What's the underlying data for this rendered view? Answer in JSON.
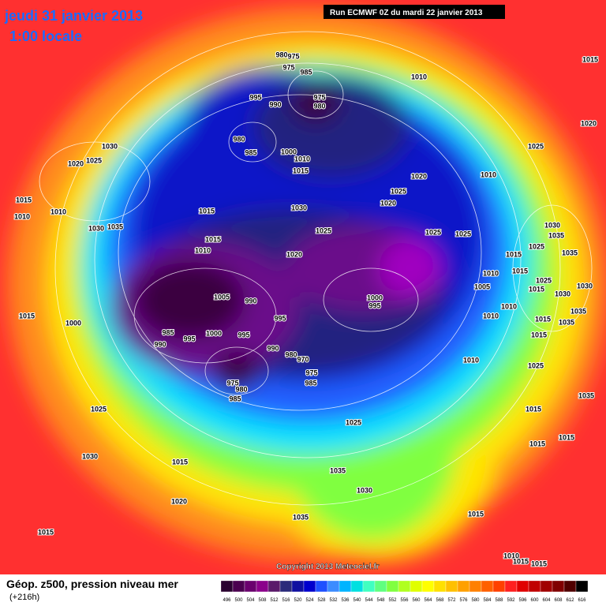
{
  "header": {
    "date": "jeudi 31 janvier 2013",
    "time": "1:00 locale",
    "run": "Run ECMWF 0Z du mardi 22 janvier 2013"
  },
  "copyright": "Copyright 2013 Meteociel.fr",
  "footer": {
    "title": "Géop. z500, pression niveau mer",
    "lead": "(+216h)"
  },
  "legend": {
    "values": [
      496,
      500,
      504,
      508,
      512,
      516,
      520,
      524,
      528,
      532,
      536,
      540,
      544,
      548,
      552,
      556,
      560,
      564,
      568,
      572,
      576,
      580,
      584,
      588,
      592,
      596,
      600,
      604,
      608,
      612,
      616
    ],
    "colors": [
      "#2a0030",
      "#4b0050",
      "#6a006e",
      "#8b008b",
      "#5a1a6a",
      "#2a2a7a",
      "#1010a0",
      "#0000cd",
      "#1e50ff",
      "#3c8cff",
      "#00b4ff",
      "#00e0e0",
      "#40ffc0",
      "#60ff80",
      "#80ff40",
      "#b0ff20",
      "#e0ff00",
      "#ffff00",
      "#ffe000",
      "#ffc000",
      "#ffa000",
      "#ff8000",
      "#ff6000",
      "#ff4000",
      "#ff2020",
      "#e00000",
      "#c00000",
      "#a00000",
      "#800000",
      "#500000",
      "#000000"
    ]
  },
  "isobar_labels": [
    980,
    975,
    975,
    985,
    975,
    980,
    995,
    990,
    980,
    985,
    1000,
    1010,
    1015,
    1010,
    1015,
    1020,
    1025,
    1010,
    1020,
    1025,
    1020,
    1030,
    1025,
    1020,
    1015,
    1010,
    1010,
    1035,
    1030,
    1015,
    1030,
    1025,
    1025,
    1025,
    1015,
    1010,
    1020,
    1005,
    990,
    995,
    1000,
    995,
    985,
    995,
    990,
    1000,
    995,
    990,
    980,
    970,
    975,
    985,
    975,
    980,
    985,
    1015,
    1000,
    1025,
    1030,
    1015,
    1020,
    1015,
    1025,
    1035,
    1030,
    1035,
    1010,
    1010,
    1005,
    1010,
    1015,
    1025,
    1030,
    1035,
    1035,
    1015,
    1025,
    1015,
    1030,
    1030,
    1010,
    1015,
    1035,
    1035,
    1015,
    1025,
    1015,
    1035,
    1015,
    1015,
    1015,
    1010,
    1015,
    1015
  ]
}
